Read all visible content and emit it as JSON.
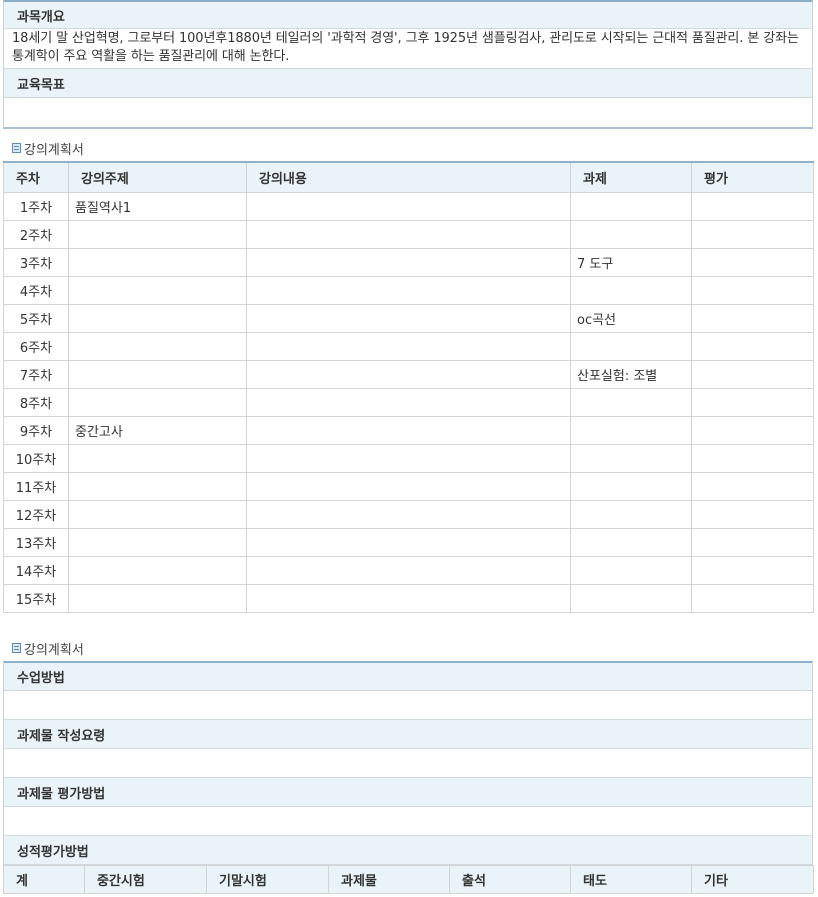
{
  "overview": {
    "title": "과목개요",
    "text": "18세기 말 산업혁명, 그로부터 100년후1880년 테일러의 '과학적 경영', 그후 1925년 샘플링검사, 관리도로 시작되는 근대적 품질관리. 본 강좌는 통계학이 주요 역활을 하는 품질관리에 대해 논한다."
  },
  "objectives": {
    "title": "교육목표",
    "text": ""
  },
  "plan": {
    "caption": "강의계획서",
    "headers": [
      "주차",
      "강의주제",
      "강의내용",
      "과제",
      "평가"
    ],
    "rows": [
      [
        "1주차",
        "품질역사1",
        "",
        "",
        ""
      ],
      [
        "2주차",
        "",
        "",
        "",
        ""
      ],
      [
        "3주차",
        "",
        "",
        "7 도구",
        ""
      ],
      [
        "4주차",
        "",
        "",
        "",
        ""
      ],
      [
        "5주차",
        "",
        "",
        "oc곡선",
        ""
      ],
      [
        "6주차",
        "",
        "",
        "",
        ""
      ],
      [
        "7주차",
        "",
        "",
        "산포실험: 조별",
        ""
      ],
      [
        "8주차",
        "",
        "",
        "",
        ""
      ],
      [
        "9주차",
        "중간고사",
        "",
        "",
        ""
      ],
      [
        "10주차",
        "",
        "",
        "",
        ""
      ],
      [
        "11주차",
        "",
        "",
        "",
        ""
      ],
      [
        "12주차",
        "",
        "",
        "",
        ""
      ],
      [
        "13주차",
        "",
        "",
        "",
        ""
      ],
      [
        "14주차",
        "",
        "",
        "",
        ""
      ],
      [
        "15주차",
        "",
        "",
        "",
        ""
      ]
    ]
  },
  "plan2": {
    "caption": "강의계획서",
    "sections": [
      {
        "title": "수업방법",
        "text": ""
      },
      {
        "title": "과제물 작성요령",
        "text": ""
      },
      {
        "title": "과제물 평가방법",
        "text": ""
      }
    ],
    "grading": {
      "title": "성적평가방법",
      "headers": [
        "계",
        "중간시험",
        "기말시험",
        "과제물",
        "출석",
        "태도",
        "기타"
      ]
    }
  }
}
